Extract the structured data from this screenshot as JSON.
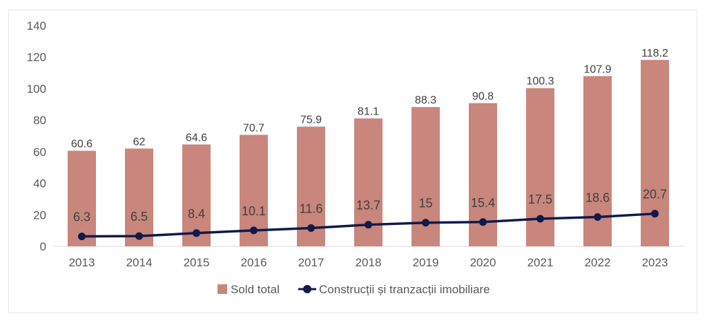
{
  "chart_data": {
    "type": "bar",
    "categories": [
      "2013",
      "2014",
      "2015",
      "2016",
      "2017",
      "2018",
      "2019",
      "2020",
      "2021",
      "2022",
      "2023"
    ],
    "series": [
      {
        "name": "Sold total",
        "type": "bar",
        "values": [
          60.6,
          62,
          64.6,
          70.7,
          75.9,
          81.1,
          88.3,
          90.8,
          100.3,
          107.9,
          118.2
        ],
        "value_labels": [
          "60.6",
          "62",
          "64.6",
          "70.7",
          "75.9",
          "81.1",
          "88.3",
          "90.8",
          "100.3",
          "107.9",
          "118.2"
        ],
        "color": "#c9867c"
      },
      {
        "name": "Construcții și tranzacții imobiliare",
        "type": "line",
        "values": [
          6.3,
          6.5,
          8.4,
          10.1,
          11.6,
          13.7,
          15,
          15.4,
          17.5,
          18.6,
          20.7
        ],
        "value_labels": [
          "6.3",
          "6.5",
          "8.4",
          "10.1",
          "11.6",
          "13.7",
          "15",
          "15.4",
          "17.5",
          "18.6",
          "20.7"
        ],
        "color": "#111a4a"
      }
    ],
    "y_ticks": [
      "0",
      "20",
      "40",
      "60",
      "80",
      "100",
      "120",
      "140"
    ],
    "ylim": [
      0,
      140
    ],
    "grid": false,
    "legend_position": "bottom"
  }
}
